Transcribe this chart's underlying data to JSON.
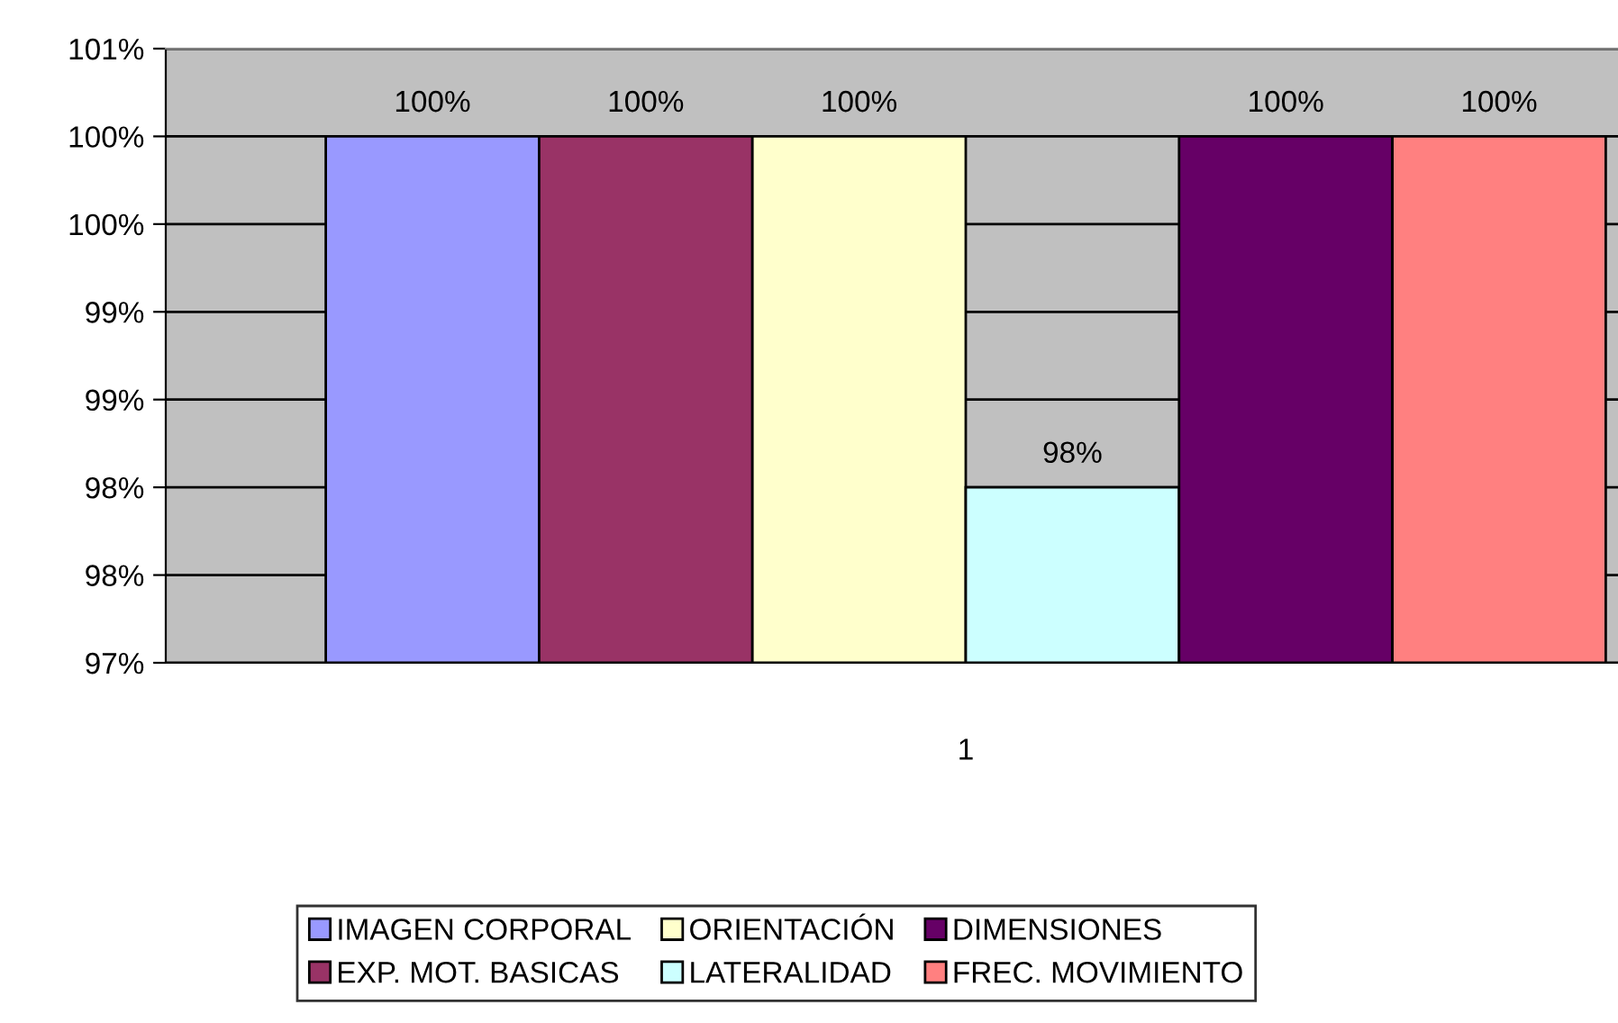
{
  "chart_data": {
    "type": "bar",
    "categories": [
      "1"
    ],
    "series": [
      {
        "name": "IMAGEN CORPORAL",
        "color": "#9999ff",
        "values": [
          100
        ],
        "value_labels": [
          "100%"
        ]
      },
      {
        "name": "EXP. MOT. BASICAS",
        "color": "#993366",
        "values": [
          100
        ],
        "value_labels": [
          "100%"
        ]
      },
      {
        "name": "ORIENTACIÓN",
        "color": "#ffffcc",
        "values": [
          100
        ],
        "value_labels": [
          "100%"
        ]
      },
      {
        "name": "LATERALIDAD",
        "color": "#ccffff",
        "values": [
          98
        ],
        "value_labels": [
          "98%"
        ]
      },
      {
        "name": "DIMENSIONES",
        "color": "#660066",
        "values": [
          100
        ],
        "value_labels": [
          "100%"
        ]
      },
      {
        "name": "FREC. MOVIMIENTO",
        "color": "#ff8080",
        "values": [
          100
        ],
        "value_labels": [
          "100%"
        ]
      }
    ],
    "ylim": [
      97,
      100.5
    ],
    "yticks": [
      {
        "value": 97,
        "label": "97%"
      },
      {
        "value": 97.5,
        "label": "98%"
      },
      {
        "value": 98,
        "label": "98%"
      },
      {
        "value": 98.5,
        "label": "99%"
      },
      {
        "value": 99,
        "label": "99%"
      },
      {
        "value": 99.5,
        "label": "100%"
      },
      {
        "value": 100,
        "label": "100%"
      },
      {
        "value": 100.5,
        "label": "101%"
      }
    ],
    "grid": "y",
    "legend": "bottom"
  }
}
